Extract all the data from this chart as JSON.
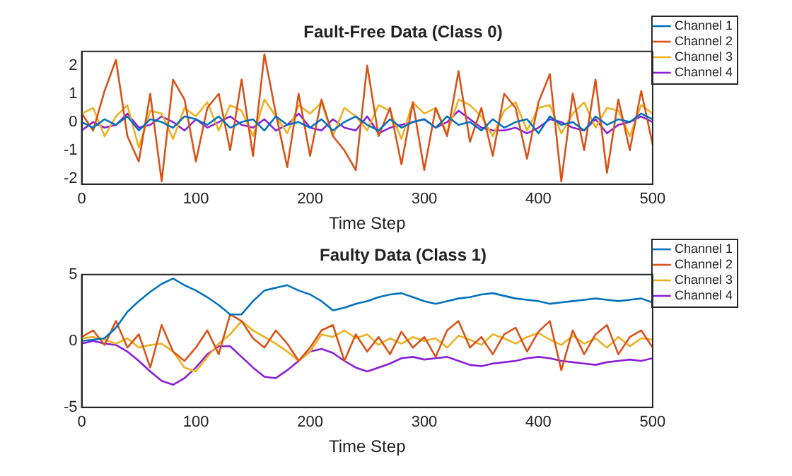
{
  "chart_data": [
    {
      "type": "line",
      "title": "Fault-Free Data (Class 0)",
      "xlabel": "Time Step",
      "legend": "right",
      "xlim": [
        0,
        500
      ],
      "xticks": [
        0,
        100,
        200,
        300,
        400,
        500
      ],
      "ylim": [
        -2.2,
        2.5
      ],
      "yticks": [
        -2,
        -1,
        0,
        1,
        2
      ],
      "x": [
        0,
        10,
        20,
        30,
        40,
        50,
        60,
        70,
        80,
        90,
        100,
        110,
        120,
        130,
        140,
        150,
        160,
        170,
        180,
        190,
        200,
        210,
        220,
        230,
        240,
        250,
        260,
        270,
        280,
        290,
        300,
        310,
        320,
        330,
        340,
        350,
        360,
        370,
        380,
        390,
        400,
        410,
        420,
        430,
        440,
        450,
        460,
        470,
        480,
        490,
        500
      ],
      "series": [
        {
          "name": "Channel 1",
          "color": "#0072bd",
          "values": [
            0,
            -0.2,
            0.1,
            -0.1,
            0.2,
            -0.3,
            0.1,
            0,
            -0.2,
            0.2,
            0.1,
            -0.1,
            0.2,
            -0.2,
            0,
            0.1,
            -0.3,
            0.2,
            -0.1,
            0,
            -0.2,
            0.1,
            -0.3,
            0,
            0.2,
            -0.1,
            -0.3,
            0.1,
            -0.2,
            0,
            0.1,
            -0.2,
            0.2,
            -0.1,
            0,
            -0.3,
            0.1,
            -0.2,
            0,
            0.1,
            -0.4,
            0.2,
            -0.1,
            0,
            -0.3,
            0.2,
            -0.1,
            0.1,
            0,
            0.3,
            0.1
          ]
        },
        {
          "name": "Channel 2",
          "color": "#d95319",
          "values": [
            0.3,
            -0.3,
            1.1,
            2.2,
            -0.5,
            -1.4,
            1.0,
            -2.1,
            1.5,
            0.8,
            -1.4,
            0.5,
            1.0,
            -1.0,
            1.5,
            -1.2,
            2.4,
            0.3,
            -1.6,
            1.0,
            -1.2,
            0.8,
            -0.5,
            -1.0,
            -1.7,
            2.0,
            -0.5,
            0.5,
            -1.5,
            0.7,
            -1.7,
            0.5,
            -0.5,
            1.8,
            -0.7,
            0.5,
            -1.2,
            1.0,
            0.5,
            -1.3,
            0.7,
            1.7,
            -2.1,
            1.0,
            -1.0,
            1.5,
            -1.8,
            0.8,
            -1.0,
            1.1,
            -0.8
          ]
        },
        {
          "name": "Channel 3",
          "color": "#edb120",
          "values": [
            0.3,
            0.5,
            -0.5,
            0.2,
            0.6,
            -0.9,
            0.4,
            0.3,
            -0.6,
            0.5,
            0.2,
            0.7,
            -0.3,
            0.6,
            0.4,
            -0.5,
            0.8,
            0.2,
            -0.4,
            0.6,
            0.3,
            0.7,
            -0.5,
            0.5,
            0.2,
            -0.3,
            0.6,
            0.4,
            -0.6,
            0.7,
            0.3,
            0.5,
            -0.4,
            0.8,
            0.6,
            0.2,
            -0.5,
            0.4,
            0.7,
            -0.3,
            0.5,
            0.6,
            -0.4,
            0.3,
            0.7,
            -0.2,
            0.5,
            0.4,
            -0.5,
            0.6,
            0.3
          ]
        },
        {
          "name": "Channel 4",
          "color": "#8a1fd8",
          "values": [
            -0.3,
            0,
            -0.2,
            -0.1,
            0.3,
            -0.2,
            -0.1,
            0.2,
            0,
            -0.3,
            0.1,
            -0.2,
            0,
            0.2,
            -0.1,
            -0.2,
            0.1,
            -0.3,
            -0.1,
            0.3,
            -0.2,
            -0.3,
            0.1,
            -0.2,
            -0.3,
            0.2,
            -0.4,
            -0.2,
            -0.1,
            0,
            0.1,
            -0.2,
            0,
            0.4,
            0.1,
            -0.2,
            -0.3,
            -0.3,
            -0.2,
            -0.4,
            -0.2,
            0.1,
            0,
            -0.2,
            -0.3,
            0.1,
            -0.4,
            -0.1,
            0,
            0.2,
            0
          ]
        }
      ]
    },
    {
      "type": "line",
      "title": "Faulty Data (Class 1)",
      "xlabel": "Time Step",
      "legend": "right",
      "xlim": [
        0,
        500
      ],
      "xticks": [
        0,
        100,
        200,
        300,
        400,
        500
      ],
      "ylim": [
        -5,
        5
      ],
      "yticks": [
        -5,
        0,
        5
      ],
      "x": [
        0,
        10,
        20,
        30,
        40,
        50,
        60,
        70,
        80,
        90,
        100,
        110,
        120,
        130,
        140,
        150,
        160,
        170,
        180,
        190,
        200,
        210,
        220,
        230,
        240,
        250,
        260,
        270,
        280,
        290,
        300,
        310,
        320,
        330,
        340,
        350,
        360,
        370,
        380,
        390,
        400,
        410,
        420,
        430,
        440,
        450,
        460,
        470,
        480,
        490,
        500
      ],
      "series": [
        {
          "name": "Channel 1",
          "color": "#0072bd",
          "values": [
            0,
            0.1,
            0.2,
            1.0,
            2.2,
            3.0,
            3.7,
            4.3,
            4.7,
            4.2,
            3.8,
            3.3,
            2.7,
            2.0,
            2.0,
            3.0,
            3.8,
            4.0,
            4.2,
            3.8,
            3.5,
            3.0,
            2.3,
            2.5,
            2.8,
            3.0,
            3.3,
            3.5,
            3.6,
            3.3,
            3.0,
            2.8,
            3.0,
            3.2,
            3.3,
            3.5,
            3.6,
            3.4,
            3.2,
            3.1,
            3.0,
            2.8,
            2.9,
            3.0,
            3.1,
            3.2,
            3.1,
            3.0,
            3.1,
            3.2,
            2.9
          ]
        },
        {
          "name": "Channel 2",
          "color": "#d95319",
          "values": [
            0.3,
            0.8,
            -0.3,
            1.5,
            -0.5,
            0.5,
            -2.0,
            1.2,
            -0.8,
            -1.5,
            -0.5,
            0.8,
            -1.0,
            2.0,
            1.5,
            0.2,
            -0.5,
            0.8,
            -0.2,
            -1.5,
            -0.5,
            0.8,
            1.2,
            -1.5,
            0.5,
            -0.8,
            0.3,
            -1.0,
            0.7,
            -0.5,
            0.3,
            -1.2,
            0.8,
            1.5,
            -0.5,
            0.3,
            -1.0,
            0.5,
            1.0,
            -0.8,
            0.7,
            1.5,
            -2.2,
            0.8,
            -1.0,
            0.5,
            1.2,
            -1.0,
            0.3,
            0.8,
            -0.5
          ]
        },
        {
          "name": "Channel 3",
          "color": "#edb120",
          "values": [
            0.2,
            0.3,
            0.1,
            -0.2,
            0.2,
            -0.5,
            -0.3,
            -0.2,
            -0.8,
            -2.0,
            -2.3,
            -1.2,
            -0.2,
            0.5,
            1.5,
            0.8,
            0.3,
            -0.2,
            -0.8,
            -1.5,
            -0.8,
            0.5,
            0.3,
            0.8,
            0.2,
            0.5,
            -0.3,
            0.2,
            -0.2,
            0.3,
            0.0,
            0.2,
            -0.5,
            0.4,
            0.1,
            -0.3,
            0.5,
            0.2,
            -0.2,
            0.3,
            0.6,
            0.1,
            -0.3,
            0.4,
            -0.2,
            0.2,
            -0.5,
            0.3,
            -0.4,
            0.2,
            0.1
          ]
        },
        {
          "name": "Channel 4",
          "color": "#8a1fd8",
          "values": [
            -0.2,
            0,
            -0.2,
            -0.3,
            -0.8,
            -1.5,
            -2.3,
            -3.0,
            -3.3,
            -2.8,
            -2.0,
            -1.0,
            -0.4,
            -0.4,
            -1.2,
            -2.0,
            -2.7,
            -2.8,
            -2.2,
            -1.5,
            -0.8,
            -0.6,
            -0.9,
            -1.5,
            -2.0,
            -2.3,
            -2.0,
            -1.7,
            -1.3,
            -1.2,
            -1.4,
            -1.3,
            -1.2,
            -1.5,
            -1.8,
            -1.9,
            -1.7,
            -1.6,
            -1.5,
            -1.3,
            -1.2,
            -1.3,
            -1.5,
            -1.6,
            -1.7,
            -1.8,
            -1.6,
            -1.5,
            -1.4,
            -1.5,
            -1.3
          ]
        }
      ]
    }
  ]
}
